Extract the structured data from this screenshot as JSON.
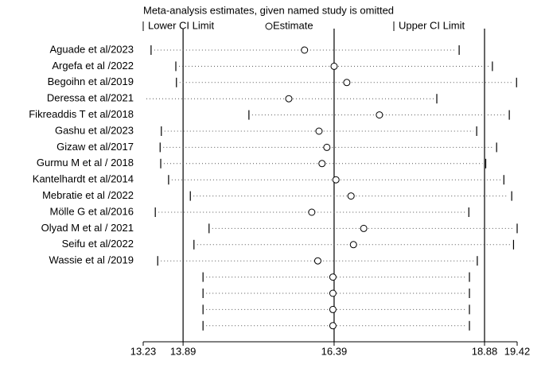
{
  "chart_data": {
    "type": "forest",
    "title": "Meta-analysis estimates, given named study is omitted",
    "categories": [
      "Aguade et al/2023",
      "Argefa  et al /2022",
      "Begoihn et al/2019",
      "Deressa et al/2021",
      "Fikreaddis T et al/2018",
      "Gashu  et al/2023",
      "Gizaw  et al/2017",
      "Gurmu M et al / 2018",
      "Kantelhardt et al/2014",
      "Mebratie  et al /2022",
      "Mölle   G et al/2016",
      "Olyad M et al / 2021",
      "Seifu  et al/2022",
      "Wassie et al /2019",
      null,
      null,
      null,
      null
    ],
    "series": [
      {
        "name": "Lower CI Limit",
        "color": "#000000",
        "values": [
          13.36,
          13.77,
          13.78,
          null,
          14.98,
          13.53,
          13.51,
          13.52,
          13.65,
          14.01,
          13.43,
          14.32,
          14.07,
          13.47,
          14.22,
          14.22,
          14.22,
          14.22
        ]
      },
      {
        "name": "Estimate",
        "color": "#000000",
        "values": [
          15.9,
          16.39,
          16.6,
          15.64,
          17.14,
          16.14,
          16.27,
          16.19,
          16.42,
          16.67,
          16.02,
          16.88,
          16.71,
          16.12,
          16.37,
          16.37,
          16.37,
          16.37
        ]
      },
      {
        "name": "Upper CI Limit",
        "color": "#000000",
        "values": [
          18.46,
          19.01,
          19.41,
          18.09,
          19.29,
          18.75,
          19.08,
          18.9,
          19.2,
          19.33,
          18.62,
          19.42,
          19.36,
          18.76,
          18.63,
          18.63,
          18.63,
          18.63
        ]
      }
    ],
    "xlim": [
      13.23,
      19.42
    ],
    "xticks": [
      13.23,
      13.89,
      16.39,
      18.88,
      19.42
    ],
    "reference_lines": [
      13.89,
      16.39,
      18.88
    ]
  }
}
